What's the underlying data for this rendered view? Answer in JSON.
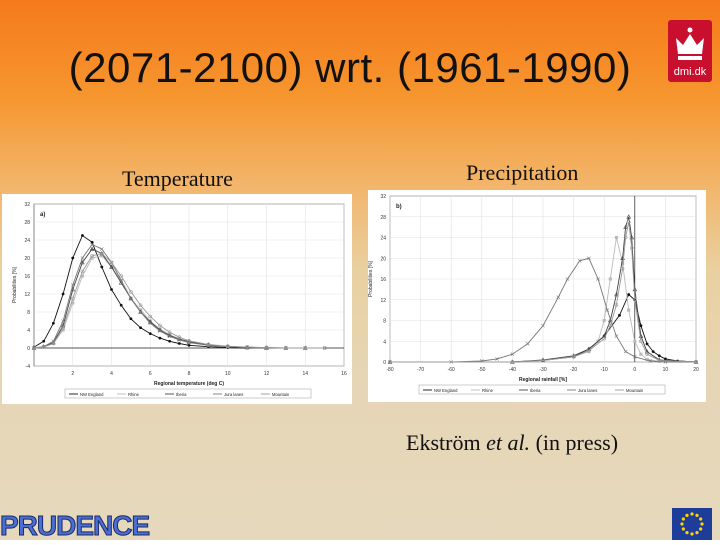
{
  "slide": {
    "title": "(2071-2100) wrt. (1961-1990)",
    "left_heading": "Temperature",
    "right_heading": "Precipitation",
    "citation_author": "Ekström ",
    "citation_etal": "et al.",
    "citation_rest": " (in press)",
    "logo_text": "dmi.dk",
    "footer_logo": "PRUDENCE",
    "colors": {
      "title_bg_top": "#f57a1c",
      "body_bg": "#e6d8bc",
      "logo_red": "#c8102e",
      "eu_blue": "#1e3c9a"
    }
  },
  "chart_data": [
    {
      "type": "line",
      "panel_label": "a)",
      "xlabel": "Regional temperature (deg C)",
      "ylabel": "Probabilities [%]",
      "xlim": [
        0,
        16
      ],
      "ylim": [
        -4,
        32
      ],
      "xticks": [
        "2",
        "4",
        "6",
        "8",
        "10",
        "12",
        "14",
        "16"
      ],
      "yticks": [
        "-4",
        "0",
        "4",
        "8",
        "12",
        "16",
        "20",
        "24",
        "28",
        "32"
      ],
      "grid": true,
      "legend_position": "bottom",
      "series": [
        {
          "name": "NW England",
          "color": "#111111",
          "marker": "dot",
          "x": [
            0,
            0.5,
            1,
            1.5,
            2,
            2.5,
            3,
            3.5,
            4,
            4.5,
            5,
            5.5,
            6,
            6.5,
            7,
            7.5,
            8,
            9,
            10,
            11,
            12
          ],
          "y": [
            0.2,
            1.5,
            5.5,
            12,
            20,
            25,
            23.5,
            18,
            13,
            9.5,
            6.5,
            4.5,
            3.2,
            2.2,
            1.5,
            1,
            0.6,
            0.3,
            0.1,
            0,
            0
          ]
        },
        {
          "name": "Rhine",
          "color": "#bbbbbb",
          "marker": "square",
          "x": [
            0,
            0.5,
            1,
            1.5,
            2,
            2.5,
            3,
            3.5,
            4,
            4.5,
            5,
            5.5,
            6,
            6.5,
            7,
            7.5,
            8,
            9,
            10,
            11,
            12,
            13,
            14
          ],
          "y": [
            0,
            0.2,
            1,
            4,
            10,
            16,
            20,
            20.5,
            18,
            15,
            11,
            8.5,
            6,
            4.2,
            3,
            2,
            1.2,
            0.6,
            0.3,
            0.1,
            0,
            0,
            0
          ]
        },
        {
          "name": "Iberia",
          "color": "#444444",
          "marker": "triangle",
          "x": [
            0,
            0.5,
            1,
            1.5,
            2,
            2.5,
            3,
            3.5,
            4,
            4.5,
            5,
            5.5,
            6,
            6.5,
            7,
            7.5,
            8,
            9,
            10,
            11,
            12,
            13,
            14
          ],
          "y": [
            0,
            0.3,
            1.2,
            5,
            13,
            19,
            22,
            21,
            18,
            14.5,
            11,
            8,
            5.8,
            4,
            2.8,
            2,
            1.4,
            0.7,
            0.3,
            0.1,
            0,
            0,
            0
          ]
        },
        {
          "name": "Jura lanes",
          "color": "#777777",
          "marker": "x",
          "x": [
            0,
            0.5,
            1,
            1.5,
            2,
            2.5,
            3,
            3.5,
            4,
            4.5,
            5,
            5.5,
            6,
            6.5,
            7,
            7.5,
            8,
            9,
            10,
            11,
            12,
            13,
            14,
            15
          ],
          "y": [
            0,
            0.3,
            1.5,
            6,
            14,
            20,
            23,
            22,
            19,
            15,
            11,
            8,
            5.5,
            3.8,
            2.6,
            1.8,
            1.2,
            0.6,
            0.3,
            0.2,
            0.1,
            0,
            0,
            0
          ]
        },
        {
          "name": "Mountain",
          "color": "#999999",
          "marker": "circle",
          "x": [
            0,
            0.5,
            1,
            1.5,
            2,
            2.5,
            3,
            3.5,
            4,
            4.5,
            5,
            5.5,
            6,
            6.5,
            7,
            7.5,
            8,
            9,
            10,
            11,
            12,
            13,
            14,
            15
          ],
          "y": [
            0,
            0.2,
            1,
            4.5,
            11,
            17,
            20.5,
            21,
            19,
            16,
            12.5,
            9.5,
            7,
            5,
            3.5,
            2.4,
            1.6,
            0.8,
            0.4,
            0.2,
            0.1,
            0,
            0,
            0
          ]
        }
      ]
    },
    {
      "type": "line",
      "panel_label": "b)",
      "xlabel": "Regional rainfall [%]",
      "ylabel": "Probabilities [%]",
      "xlim": [
        -80,
        20
      ],
      "ylim": [
        0,
        32
      ],
      "xticks": [
        "-80",
        "-70",
        "-60",
        "-50",
        "-40",
        "-30",
        "-20",
        "-10",
        "0",
        "10",
        "20"
      ],
      "yticks": [
        "0",
        "4",
        "8",
        "12",
        "16",
        "20",
        "24",
        "28",
        "32"
      ],
      "grid": true,
      "legend_position": "bottom",
      "series": [
        {
          "name": "NW England",
          "color": "#111111",
          "marker": "dot",
          "x": [
            -80,
            -40,
            -30,
            -20,
            -15,
            -10,
            -5,
            -2,
            0,
            2,
            4,
            6,
            8,
            10,
            14,
            20
          ],
          "y": [
            0,
            0,
            0.3,
            1,
            2.5,
            5,
            9,
            13,
            12,
            7,
            3.5,
            2,
            1.2,
            0.6,
            0.2,
            0
          ]
        },
        {
          "name": "Rhine",
          "color": "#bbbbbb",
          "marker": "square",
          "x": [
            -80,
            -40,
            -30,
            -20,
            -15,
            -12,
            -10,
            -8,
            -6,
            -4,
            -2,
            0,
            2,
            4,
            8,
            20
          ],
          "y": [
            0,
            0,
            0.3,
            1,
            2,
            4,
            8,
            16,
            24,
            19,
            10,
            4,
            1.5,
            0.5,
            0.1,
            0
          ]
        },
        {
          "name": "Iberia",
          "color": "#444444",
          "marker": "triangle",
          "x": [
            -80,
            -40,
            -30,
            -20,
            -15,
            -10,
            -8,
            -6,
            -4,
            -3,
            -2,
            -1,
            0,
            2,
            4,
            8,
            20
          ],
          "y": [
            0,
            0,
            0.4,
            1.2,
            2.5,
            5,
            8,
            13,
            20,
            26,
            28,
            24,
            14,
            5,
            2,
            0.4,
            0
          ]
        },
        {
          "name": "Jura lanes",
          "color": "#777777",
          "marker": "x",
          "x": [
            -80,
            -60,
            -50,
            -45,
            -40,
            -35,
            -30,
            -25,
            -22,
            -18,
            -15,
            -12,
            -9,
            -6,
            -3,
            0,
            5,
            10,
            20
          ],
          "y": [
            0,
            0,
            0.2,
            0.6,
            1.5,
            3.5,
            7,
            12.5,
            16,
            19.5,
            20,
            16,
            10,
            5,
            2,
            1,
            0.2,
            0,
            0
          ]
        },
        {
          "name": "Mountain",
          "color": "#999999",
          "marker": "circle",
          "x": [
            -80,
            -40,
            -30,
            -20,
            -15,
            -10,
            -8,
            -6,
            -4,
            -3,
            -2,
            -1,
            0,
            2,
            4,
            8,
            20
          ],
          "y": [
            0,
            0,
            0.3,
            1,
            2.2,
            4.5,
            7,
            11,
            18,
            24,
            27,
            22,
            12,
            4,
            1.5,
            0.3,
            0
          ]
        }
      ]
    }
  ]
}
